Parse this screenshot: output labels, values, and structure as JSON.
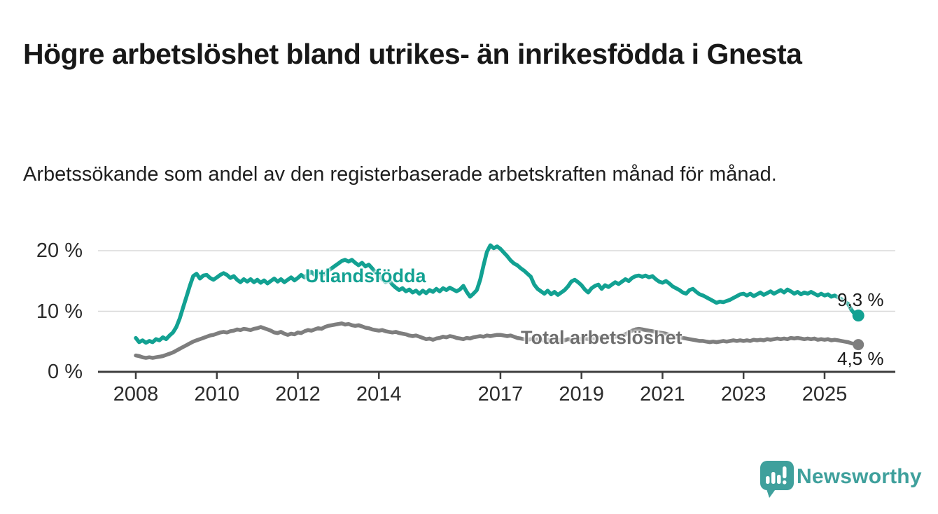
{
  "title": "Högre arbetslöshet bland utrikes- än inrikesfödda i Gnesta",
  "subtitle": "Arbetssökande som andel av den registerbaserade arbetskraften månad för månad.",
  "branding": {
    "wordmark": "Newsworthy",
    "logo_icon": "speech-bubble-bar-chart-icon",
    "teal": "#3fa09c"
  },
  "colors": {
    "series_utlandsfodda": "#12a192",
    "series_total": "#7e7e7e",
    "series_total_label": "#6f6f6f",
    "grid": "#d8d8d8",
    "axis": "#3d3d3d",
    "tick_text": "#2b2b2b",
    "end_label_text": "#1a1a1a"
  },
  "chart_data": {
    "type": "line",
    "unit": "%",
    "x_start_year": 2008,
    "x_step_months": 1,
    "x_last_point": "2025-11",
    "ylim": [
      0,
      22
    ],
    "grid": "horizontal",
    "yticks": [
      {
        "value": 0,
        "label": "0 %"
      },
      {
        "value": 10,
        "label": "10 %"
      },
      {
        "value": 20,
        "label": "20 %"
      }
    ],
    "xticks": [
      {
        "year": 2008,
        "label": "2008"
      },
      {
        "year": 2010,
        "label": "2010"
      },
      {
        "year": 2012,
        "label": "2012"
      },
      {
        "year": 2014,
        "label": "2014"
      },
      {
        "year": 2017,
        "label": "2017"
      },
      {
        "year": 2019,
        "label": "2019"
      },
      {
        "year": 2021,
        "label": "2021"
      },
      {
        "year": 2023,
        "label": "2023"
      },
      {
        "year": 2025,
        "label": "2025"
      }
    ],
    "series": [
      {
        "name": "Utlandsfödda",
        "color": "#12a192",
        "end_label": "9,3 %",
        "end_value": 9.3,
        "values": [
          5.6,
          4.9,
          5.2,
          4.8,
          5.1,
          4.9,
          5.4,
          5.2,
          5.7,
          5.4,
          6.0,
          6.5,
          7.4,
          8.8,
          10.6,
          12.4,
          14.2,
          15.8,
          16.2,
          15.4,
          15.9,
          16.0,
          15.5,
          15.2,
          15.6,
          16.0,
          16.3,
          16.0,
          15.5,
          15.8,
          15.2,
          14.8,
          15.3,
          14.9,
          15.3,
          14.8,
          15.2,
          14.7,
          15.1,
          14.6,
          15.0,
          15.4,
          14.9,
          15.3,
          14.8,
          15.2,
          15.6,
          15.1,
          15.5,
          16.0,
          15.6,
          16.1,
          16.5,
          16.0,
          16.4,
          15.9,
          16.2,
          16.7,
          17.1,
          17.5,
          17.9,
          18.3,
          18.5,
          18.2,
          18.5,
          18.0,
          17.6,
          18.0,
          17.4,
          17.7,
          17.1,
          16.4,
          15.9,
          15.3,
          14.8,
          15.1,
          14.4,
          13.9,
          13.5,
          13.8,
          13.3,
          13.6,
          13.1,
          13.4,
          12.9,
          13.4,
          13.0,
          13.5,
          13.2,
          13.7,
          13.3,
          13.8,
          13.5,
          13.9,
          13.6,
          13.3,
          13.6,
          14.2,
          13.2,
          12.4,
          12.9,
          13.5,
          15.2,
          17.6,
          19.8,
          20.9,
          20.4,
          20.7,
          20.3,
          19.7,
          19.1,
          18.4,
          17.9,
          17.6,
          17.1,
          16.7,
          16.2,
          15.7,
          14.4,
          13.7,
          13.3,
          12.9,
          13.4,
          12.8,
          13.2,
          12.7,
          13.1,
          13.5,
          14.1,
          14.9,
          15.2,
          14.8,
          14.3,
          13.6,
          13.1,
          13.8,
          14.2,
          14.4,
          13.7,
          14.3,
          14.0,
          14.4,
          14.8,
          14.5,
          14.9,
          15.3,
          15.0,
          15.5,
          15.8,
          15.9,
          15.7,
          15.9,
          15.6,
          15.8,
          15.3,
          14.9,
          14.7,
          15.0,
          14.6,
          14.1,
          13.8,
          13.5,
          13.1,
          12.9,
          13.5,
          13.7,
          13.2,
          12.8,
          12.6,
          12.3,
          12.0,
          11.7,
          11.4,
          11.6,
          11.5,
          11.7,
          11.9,
          12.2,
          12.5,
          12.8,
          12.9,
          12.6,
          12.9,
          12.5,
          12.8,
          13.1,
          12.7,
          13.0,
          13.3,
          12.9,
          13.2,
          13.5,
          13.1,
          13.6,
          13.3,
          12.9,
          13.2,
          12.8,
          13.1,
          12.9,
          13.2,
          12.9,
          12.6,
          12.9,
          12.6,
          12.8,
          12.4,
          12.6,
          12.3,
          12.0,
          11.6,
          11.2,
          10.2,
          9.5,
          9.3
        ]
      },
      {
        "name": "Total arbetslöshet",
        "color": "#7e7e7e",
        "end_label": "4,5 %",
        "end_value": 4.5,
        "values": [
          2.7,
          2.6,
          2.4,
          2.3,
          2.4,
          2.3,
          2.4,
          2.5,
          2.6,
          2.8,
          3.0,
          3.2,
          3.5,
          3.8,
          4.1,
          4.4,
          4.7,
          5.0,
          5.2,
          5.4,
          5.6,
          5.8,
          6.0,
          6.1,
          6.3,
          6.5,
          6.6,
          6.5,
          6.7,
          6.8,
          7.0,
          6.9,
          7.1,
          7.0,
          6.9,
          7.1,
          7.2,
          7.4,
          7.2,
          7.0,
          6.8,
          6.5,
          6.4,
          6.6,
          6.3,
          6.1,
          6.3,
          6.2,
          6.5,
          6.4,
          6.7,
          6.9,
          6.8,
          7.0,
          7.2,
          7.1,
          7.4,
          7.6,
          7.7,
          7.8,
          7.9,
          8.0,
          7.8,
          7.9,
          7.7,
          7.6,
          7.7,
          7.5,
          7.3,
          7.2,
          7.0,
          6.9,
          6.8,
          6.9,
          6.7,
          6.6,
          6.5,
          6.6,
          6.4,
          6.3,
          6.2,
          6.0,
          5.9,
          6.0,
          5.8,
          5.6,
          5.4,
          5.5,
          5.3,
          5.5,
          5.6,
          5.8,
          5.7,
          5.9,
          5.8,
          5.6,
          5.5,
          5.4,
          5.6,
          5.5,
          5.7,
          5.8,
          5.9,
          5.8,
          6.0,
          5.9,
          6.0,
          6.1,
          6.1,
          6.0,
          5.9,
          6.0,
          5.8,
          5.6,
          5.5,
          5.4,
          5.3,
          5.4,
          5.3,
          5.4,
          5.3,
          5.2,
          5.3,
          5.2,
          5.1,
          5.2,
          5.3,
          5.2,
          5.4,
          5.3,
          5.4,
          5.5,
          5.4,
          5.5,
          5.4,
          5.6,
          5.5,
          5.6,
          5.7,
          5.6,
          5.8,
          5.7,
          5.8,
          5.9,
          6.0,
          6.2,
          6.5,
          6.8,
          7.0,
          7.1,
          7.0,
          6.9,
          6.8,
          6.7,
          6.6,
          6.5,
          6.4,
          6.3,
          6.1,
          6.0,
          5.8,
          5.7,
          5.6,
          5.5,
          5.4,
          5.3,
          5.2,
          5.1,
          5.1,
          5.0,
          4.9,
          5.0,
          4.9,
          5.0,
          5.1,
          5.0,
          5.1,
          5.2,
          5.1,
          5.2,
          5.1,
          5.2,
          5.1,
          5.3,
          5.2,
          5.3,
          5.2,
          5.4,
          5.3,
          5.4,
          5.5,
          5.4,
          5.5,
          5.4,
          5.6,
          5.5,
          5.6,
          5.5,
          5.4,
          5.5,
          5.4,
          5.5,
          5.3,
          5.4,
          5.3,
          5.4,
          5.2,
          5.3,
          5.2,
          5.1,
          5.0,
          4.9,
          4.7,
          4.6,
          4.5
        ]
      }
    ]
  }
}
